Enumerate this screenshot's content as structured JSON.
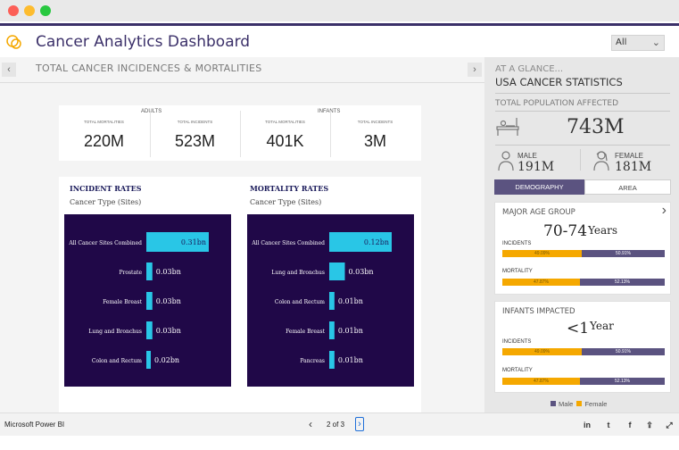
{
  "header": {
    "title": "Cancer Analytics Dashboard",
    "filter_value": "All"
  },
  "main": {
    "section_title": "TOTAL CANCER INCIDENCES & MORTALITIES",
    "kpis": {
      "adults_label": "ADULTS",
      "infants_label": "INFANTS",
      "items": [
        {
          "label": "TOTAL MORTALITIES",
          "value": "220M"
        },
        {
          "label": "TOTAL INCIDENTS",
          "value": "523M"
        },
        {
          "label": "TOTAL MORTALITIES",
          "value": "401K"
        },
        {
          "label": "TOTAL INCIDENTS",
          "value": "3M"
        }
      ]
    }
  },
  "chart_data": [
    {
      "type": "bar",
      "title": "INCIDENT RATES",
      "subtitle": "Cancer Type (Sites)",
      "categories": [
        "All Cancer Sites Combined",
        "Prostate",
        "Female Breast",
        "Lung and Bronchus",
        "Colon and Rectum"
      ],
      "values": [
        0.31,
        0.03,
        0.03,
        0.03,
        0.02
      ],
      "value_labels": [
        "0.31bn",
        "0.03bn",
        "0.03bn",
        "0.03bn",
        "0.02bn"
      ],
      "unit": "bn",
      "orientation": "horizontal",
      "bar_color": "#29c6e6",
      "background": "#200848"
    },
    {
      "type": "bar",
      "title": "MORTALITY RATES",
      "subtitle": "Cancer Type (Sites)",
      "categories": [
        "All Cancer Sites Combined",
        "Lung and Bronchus",
        "Colon and Rectum",
        "Female Breast",
        "Pancreas"
      ],
      "values": [
        0.12,
        0.03,
        0.01,
        0.01,
        0.01
      ],
      "value_labels": [
        "0.12bn",
        "0.03bn",
        "0.01bn",
        "0.01bn",
        "0.01bn"
      ],
      "unit": "bn",
      "orientation": "horizontal",
      "bar_color": "#29c6e6",
      "background": "#200848"
    }
  ],
  "side": {
    "at_a_glance": "AT A GLANCE...",
    "title": "USA CANCER STATISTICS",
    "population_label": "TOTAL POPULATION AFFECTED",
    "population_value": "743M",
    "male_label": "MALE",
    "male_value": "191M",
    "female_label": "FEMALE",
    "female_value": "181M",
    "tabs": [
      "DEMOGRAPHY",
      "AREA"
    ],
    "age_card": {
      "title": "MAJOR AGE GROUP",
      "value": "70-74",
      "unit": "Years",
      "incidents_label": "INCIDENTS",
      "incidents_male_pct": 49.09,
      "incidents_male_label": "49.09%",
      "incidents_female_label": "50.91%",
      "mortality_label": "MORTALITY",
      "mortality_male_pct": 47.87,
      "mortality_male_label": "47.87%",
      "mortality_female_label": "52.13%"
    },
    "infant_card": {
      "title": "INFANTS IMPACTED",
      "value": "<1",
      "unit": "Year",
      "incidents_label": "INCIDENTS",
      "incidents_male_pct": 49.09,
      "incidents_male_label": "49.09%",
      "incidents_female_label": "50.91%",
      "mortality_label": "MORTALITY",
      "mortality_male_pct": 47.87,
      "mortality_male_label": "47.87%",
      "mortality_female_label": "52.13%"
    },
    "legend": {
      "male": "Male",
      "female": "Female"
    }
  },
  "colors": {
    "accent": "#3b3069",
    "male": "#5b5380",
    "female": "#f5a800",
    "bar": "#29c6e6",
    "chart_bg": "#200848"
  },
  "footer": {
    "brand": "Microsoft Power BI",
    "pager": "2 of 3",
    "icons": [
      "linkedin-icon",
      "twitter-icon",
      "facebook-icon",
      "share-icon",
      "expand-icon"
    ]
  }
}
